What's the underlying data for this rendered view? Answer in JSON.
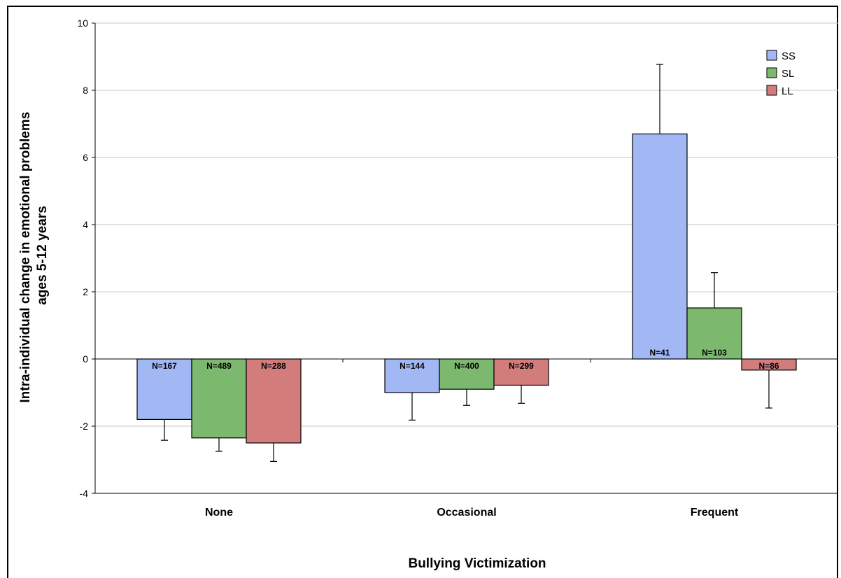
{
  "chart_data": {
    "type": "bar",
    "title": "",
    "xlabel": "Bullying Victimization",
    "ylabel": [
      "Intra-individual change in emotional problems",
      "ages 5-12 years"
    ],
    "ylim": [
      -4,
      10
    ],
    "yticks": [
      -4,
      -2,
      0,
      2,
      4,
      6,
      8,
      10
    ],
    "grid": true,
    "legend_position": "top-right",
    "categories": [
      "None",
      "Occasional",
      "Frequent"
    ],
    "series": [
      {
        "name": "SS",
        "color": "#a2b8f5",
        "values": [
          -1.8,
          -1.0,
          6.7
        ],
        "error": [
          0.62,
          0.82,
          2.07
        ],
        "n_labels": [
          "N=167",
          "N=144",
          "N=41"
        ]
      },
      {
        "name": "SL",
        "color": "#7cb96f",
        "values": [
          -2.35,
          -0.9,
          1.52
        ],
        "error": [
          0.4,
          0.48,
          1.05
        ],
        "n_labels": [
          "N=489",
          "N=400",
          "N=103"
        ]
      },
      {
        "name": "LL",
        "color": "#d37c7c",
        "values": [
          -2.5,
          -0.78,
          -0.33
        ],
        "error": [
          0.55,
          0.54,
          1.13
        ],
        "n_labels": [
          "N=288",
          "N=299",
          "N=86"
        ]
      }
    ]
  }
}
